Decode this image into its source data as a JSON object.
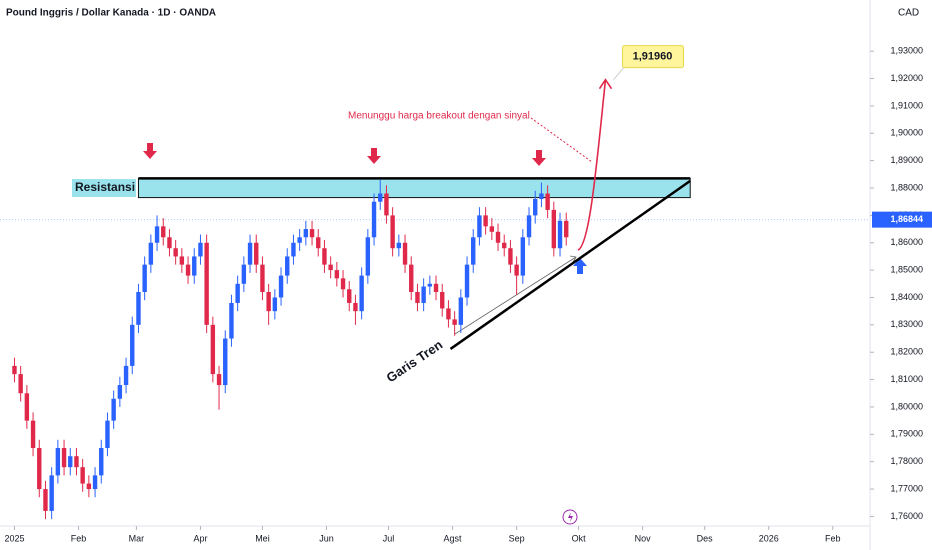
{
  "chart_data": {
    "type": "candlestick",
    "title": "Pound Inggris / Dollar Kanada · 1D · OANDA",
    "currency": "CAD",
    "up_color": "#2962ff",
    "down_color": "#e0294a",
    "grid": false,
    "x": [
      0,
      3,
      6,
      9,
      12,
      15,
      18,
      21,
      24,
      27,
      30,
      33,
      36,
      39,
      42,
      45,
      48,
      51,
      54,
      57,
      60,
      63,
      66,
      69,
      72,
      75,
      78,
      81,
      84,
      87,
      90,
      93,
      96,
      99,
      102,
      105,
      108,
      111,
      114,
      117,
      120,
      123,
      126,
      129,
      132,
      135,
      138,
      141,
      144,
      147,
      150,
      153,
      156,
      159,
      162,
      165,
      168,
      171,
      174,
      177,
      180,
      183,
      186,
      189,
      192,
      195,
      198,
      201,
      204,
      207,
      210,
      213,
      216,
      219,
      222,
      225,
      228,
      231,
      234,
      237,
      240,
      243,
      246,
      249,
      252,
      255,
      258,
      261,
      264,
      267
    ],
    "open": [
      1.815,
      1.812,
      1.805,
      1.795,
      1.785,
      1.77,
      1.762,
      1.775,
      1.785,
      1.778,
      1.782,
      1.778,
      1.772,
      1.77,
      1.775,
      1.785,
      1.795,
      1.803,
      1.808,
      1.815,
      1.83,
      1.842,
      1.852,
      1.86,
      1.866,
      1.862,
      1.858,
      1.855,
      1.852,
      1.848,
      1.855,
      1.86,
      1.83,
      1.812,
      1.808,
      1.825,
      1.838,
      1.845,
      1.852,
      1.86,
      1.852,
      1.842,
      1.835,
      1.84,
      1.848,
      1.855,
      1.86,
      1.862,
      1.865,
      1.862,
      1.858,
      1.852,
      1.85,
      1.847,
      1.843,
      1.838,
      1.835,
      1.848,
      1.862,
      1.875,
      1.878,
      1.87,
      1.858,
      1.86,
      1.852,
      1.842,
      1.838,
      1.844,
      1.845,
      1.842,
      1.836,
      1.832,
      1.83,
      1.84,
      1.852,
      1.862,
      1.87,
      1.866,
      1.864,
      1.86,
      1.858,
      1.852,
      1.848,
      1.862,
      1.87,
      1.876,
      1.878,
      1.872,
      1.858,
      1.868
    ],
    "high": [
      1.818,
      1.815,
      1.808,
      1.798,
      1.788,
      1.773,
      1.778,
      1.788,
      1.788,
      1.785,
      1.785,
      1.781,
      1.775,
      1.778,
      1.788,
      1.798,
      1.806,
      1.811,
      1.818,
      1.833,
      1.845,
      1.855,
      1.863,
      1.87,
      1.869,
      1.865,
      1.861,
      1.858,
      1.855,
      1.858,
      1.863,
      1.863,
      1.833,
      1.815,
      1.828,
      1.841,
      1.848,
      1.855,
      1.863,
      1.863,
      1.855,
      1.845,
      1.843,
      1.851,
      1.858,
      1.863,
      1.865,
      1.868,
      1.868,
      1.865,
      1.861,
      1.855,
      1.853,
      1.85,
      1.846,
      1.841,
      1.851,
      1.865,
      1.878,
      1.883,
      1.881,
      1.873,
      1.863,
      1.863,
      1.855,
      1.845,
      1.847,
      1.848,
      1.848,
      1.845,
      1.839,
      1.835,
      1.843,
      1.855,
      1.865,
      1.873,
      1.873,
      1.869,
      1.867,
      1.863,
      1.861,
      1.855,
      1.865,
      1.873,
      1.879,
      1.882,
      1.881,
      1.875,
      1.871,
      1.871
    ],
    "low": [
      1.809,
      1.802,
      1.792,
      1.782,
      1.767,
      1.759,
      1.759,
      1.772,
      1.775,
      1.775,
      1.775,
      1.769,
      1.767,
      1.767,
      1.772,
      1.782,
      1.792,
      1.8,
      1.805,
      1.812,
      1.827,
      1.839,
      1.849,
      1.857,
      1.859,
      1.855,
      1.852,
      1.849,
      1.845,
      1.845,
      1.852,
      1.827,
      1.809,
      1.799,
      1.805,
      1.822,
      1.835,
      1.842,
      1.849,
      1.849,
      1.839,
      1.83,
      1.832,
      1.837,
      1.845,
      1.852,
      1.857,
      1.859,
      1.859,
      1.855,
      1.849,
      1.847,
      1.844,
      1.84,
      1.835,
      1.83,
      1.832,
      1.845,
      1.859,
      1.872,
      1.867,
      1.855,
      1.855,
      1.849,
      1.839,
      1.835,
      1.835,
      1.841,
      1.839,
      1.833,
      1.829,
      1.826,
      1.827,
      1.837,
      1.849,
      1.859,
      1.863,
      1.861,
      1.857,
      1.855,
      1.849,
      1.841,
      1.845,
      1.859,
      1.867,
      1.873,
      1.869,
      1.855,
      1.855,
      1.859
    ],
    "close": [
      1.812,
      1.805,
      1.795,
      1.785,
      1.77,
      1.762,
      1.775,
      1.785,
      1.778,
      1.782,
      1.778,
      1.772,
      1.77,
      1.775,
      1.785,
      1.795,
      1.803,
      1.808,
      1.815,
      1.83,
      1.842,
      1.852,
      1.86,
      1.866,
      1.862,
      1.858,
      1.855,
      1.852,
      1.848,
      1.855,
      1.86,
      1.83,
      1.812,
      1.808,
      1.825,
      1.838,
      1.845,
      1.852,
      1.86,
      1.852,
      1.842,
      1.835,
      1.84,
      1.848,
      1.855,
      1.86,
      1.862,
      1.865,
      1.862,
      1.858,
      1.852,
      1.85,
      1.847,
      1.843,
      1.838,
      1.835,
      1.848,
      1.862,
      1.875,
      1.878,
      1.87,
      1.858,
      1.86,
      1.852,
      1.842,
      1.838,
      1.844,
      1.845,
      1.842,
      1.836,
      1.832,
      1.83,
      1.84,
      1.852,
      1.862,
      1.87,
      1.866,
      1.864,
      1.86,
      1.858,
      1.852,
      1.848,
      1.862,
      1.87,
      1.876,
      1.878,
      1.872,
      1.858,
      1.868,
      1.862
    ],
    "xlim": [
      -7,
      414
    ],
    "xticks": [
      {
        "value": 0,
        "label": "2025"
      },
      {
        "value": 31,
        "label": "Feb"
      },
      {
        "value": 59,
        "label": "Mar"
      },
      {
        "value": 90,
        "label": "Apr"
      },
      {
        "value": 120,
        "label": "Mei"
      },
      {
        "value": 151,
        "label": "Jun"
      },
      {
        "value": 181,
        "label": "Jul"
      },
      {
        "value": 212,
        "label": "Agst"
      },
      {
        "value": 243,
        "label": "Sep"
      },
      {
        "value": 273,
        "label": "Okt"
      },
      {
        "value": 304,
        "label": "Nov"
      },
      {
        "value": 334,
        "label": "Des"
      },
      {
        "value": 365,
        "label": "2026"
      },
      {
        "value": 396,
        "label": "Feb"
      }
    ],
    "ylim": [
      1.7565,
      1.9487
    ],
    "yticks": [
      {
        "value": 1.76,
        "label": "1,76000"
      },
      {
        "value": 1.77,
        "label": "1,77000"
      },
      {
        "value": 1.78,
        "label": "1,78000"
      },
      {
        "value": 1.79,
        "label": "1,79000"
      },
      {
        "value": 1.8,
        "label": "1,80000"
      },
      {
        "value": 1.81,
        "label": "1,81000"
      },
      {
        "value": 1.82,
        "label": "1,82000"
      },
      {
        "value": 1.83,
        "label": "1,83000"
      },
      {
        "value": 1.84,
        "label": "1,84000"
      },
      {
        "value": 1.85,
        "label": "1,85000"
      },
      {
        "value": 1.86,
        "label": "1,86000"
      },
      {
        "value": 1.87,
        "label": "1,87000"
      },
      {
        "value": 1.88,
        "label": "1,88000"
      },
      {
        "value": 1.89,
        "label": "1,89000"
      },
      {
        "value": 1.9,
        "label": "1,90000"
      },
      {
        "value": 1.91,
        "label": "1,91000"
      },
      {
        "value": 1.92,
        "label": "1,92000"
      },
      {
        "value": 1.93,
        "label": "1,93000"
      }
    ],
    "current_price": {
      "value": 1.86844,
      "label": "1,86844"
    },
    "resistance": {
      "label": "Resistansi",
      "x": [
        60,
        327
      ],
      "top": 1.8835,
      "bottom": 1.8765
    },
    "trendline": {
      "label": "Garis Tren",
      "x": [
        211,
        327
      ],
      "y": [
        1.8212,
        1.8826
      ]
    },
    "target": {
      "x": 286,
      "value": 1.9196,
      "label": "1,91960"
    },
    "annotation": "Menunggu harga breakout dengan sinyal"
  }
}
